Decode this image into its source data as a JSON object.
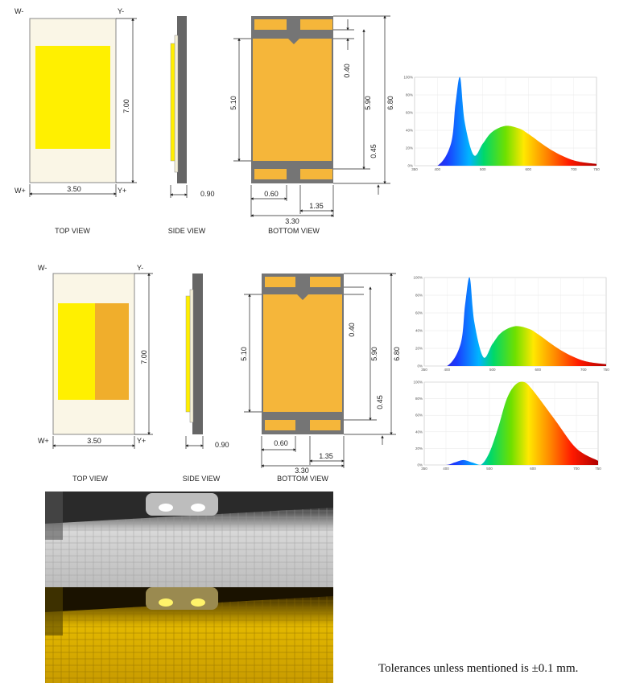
{
  "set1": {
    "pin_tl": "W-",
    "pin_tr": "Y-",
    "pin_bl": "W+",
    "pin_br": "Y+",
    "dims": {
      "width": "3.50",
      "length": "7.00",
      "thickness": "0.90",
      "pad_len": "5.10",
      "gap": "0.40",
      "pad_span": "5.90",
      "total": "6.80",
      "bottom_gap": "0.45",
      "pad_w": "0.60",
      "pad_off": "1.35",
      "body_w": "3.30"
    },
    "labels": {
      "top": "TOP VIEW",
      "side": "SIDE VIEW",
      "bottom": "BOTTOM VIEW"
    }
  },
  "set2": {
    "pin_tl": "W-",
    "pin_tr": "Y-",
    "pin_bl": "W+",
    "pin_br": "Y+",
    "dims": {
      "width": "3.50",
      "length": "7.00",
      "thickness": "0.90",
      "pad_len": "5.10",
      "gap": "0.40",
      "pad_span": "5.90",
      "total": "6.80",
      "bottom_gap": "0.45",
      "pad_w": "0.60",
      "pad_off": "1.35",
      "body_w": "3.30"
    },
    "labels": {
      "top": "TOP VIEW",
      "side": "SIDE VIEW",
      "bottom": "BOTTOM VIEW"
    }
  },
  "spectra": {
    "y_ticks": [
      "0%",
      "20%",
      "40%",
      "60%",
      "80%",
      "100%"
    ],
    "x_ticks": [
      "350",
      "400",
      "500",
      "600",
      "700",
      "750"
    ]
  },
  "chart_data": [
    {
      "type": "line",
      "title": "",
      "xlabel": "",
      "ylabel": "",
      "xlim": [
        350,
        750
      ],
      "ylim": [
        0,
        100
      ],
      "series": [
        {
          "x": [
            350,
            400,
            430,
            440,
            450,
            460,
            480,
            500,
            520,
            550,
            580,
            600,
            650,
            700,
            750
          ],
          "values": [
            0,
            0,
            25,
            70,
            100,
            50,
            12,
            25,
            38,
            45,
            42,
            36,
            18,
            6,
            2
          ]
        }
      ]
    },
    {
      "type": "line",
      "title": "",
      "xlabel": "",
      "ylabel": "",
      "xlim": [
        350,
        750
      ],
      "ylim": [
        0,
        100
      ],
      "series": [
        {
          "x": [
            350,
            400,
            430,
            440,
            450,
            460,
            480,
            500,
            520,
            550,
            580,
            600,
            650,
            700,
            750
          ],
          "values": [
            0,
            0,
            25,
            70,
            100,
            50,
            10,
            25,
            38,
            45,
            42,
            36,
            18,
            6,
            2
          ]
        }
      ]
    },
    {
      "type": "line",
      "title": "",
      "xlabel": "",
      "ylabel": "",
      "xlim": [
        350,
        750
      ],
      "ylim": [
        0,
        100
      ],
      "series": [
        {
          "x": [
            350,
            400,
            420,
            440,
            460,
            480,
            500,
            520,
            540,
            560,
            580,
            600,
            650,
            700,
            750
          ],
          "values": [
            0,
            0,
            3,
            6,
            3,
            0,
            15,
            45,
            80,
            97,
            100,
            90,
            55,
            20,
            5
          ]
        }
      ]
    }
  ],
  "tolerance_note": "Tolerances unless mentioned is ±0.1 mm."
}
